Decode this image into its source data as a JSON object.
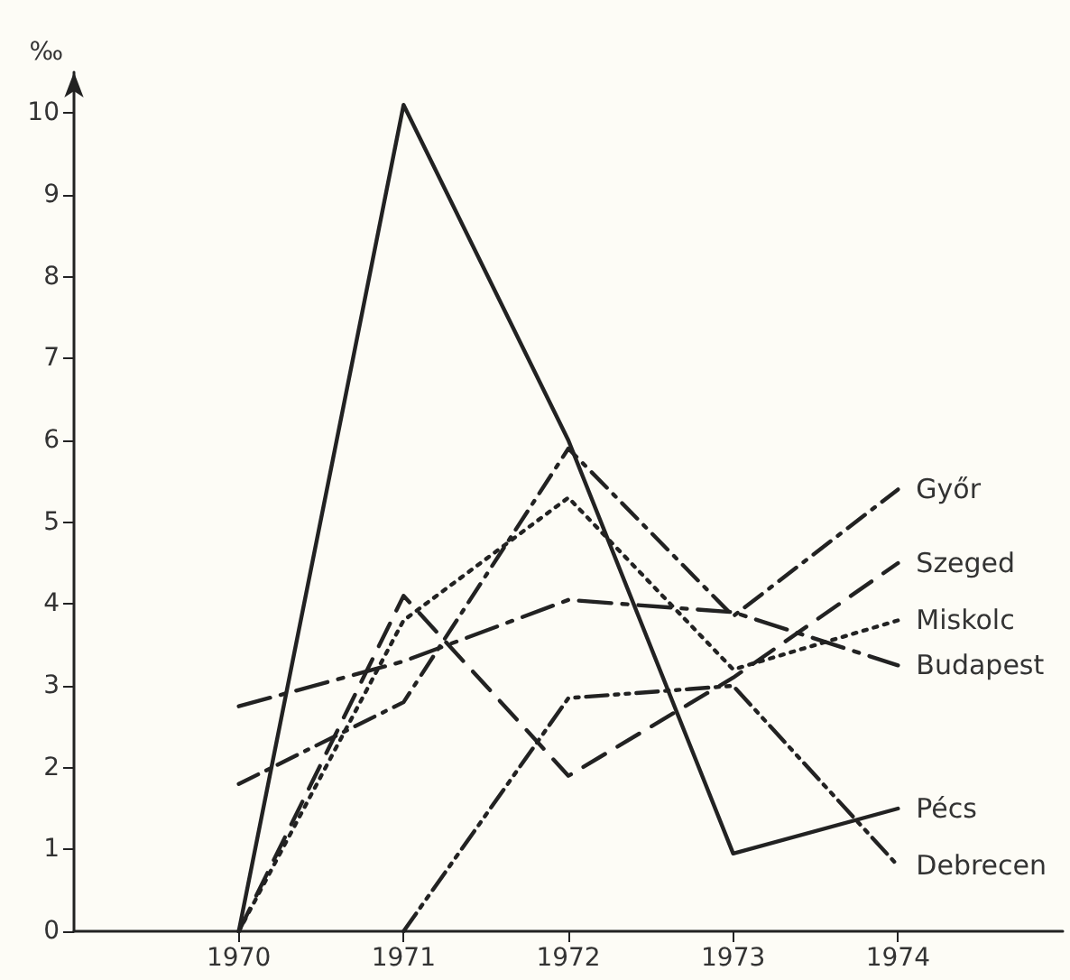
{
  "chart_data": {
    "type": "line",
    "ylabel": "‰",
    "x": [
      1970,
      1971,
      1972,
      1973,
      1974
    ],
    "xlim": [
      1969,
      1975
    ],
    "xticks": [
      1970,
      1971,
      1972,
      1973,
      1974
    ],
    "ylim": [
      0,
      10.5
    ],
    "yticks": [
      0,
      1,
      2,
      3,
      4,
      5,
      6,
      7,
      8,
      9,
      10
    ],
    "grid": false,
    "legend": false,
    "marker": "none",
    "series": [
      {
        "name": "Győr",
        "color": "#222222",
        "line_style": "dashdot",
        "values": [
          1.8,
          2.8,
          5.9,
          3.85,
          5.4
        ]
      },
      {
        "name": "Szeged",
        "color": "#222222",
        "line_style": "dashed",
        "values": [
          0,
          4.1,
          1.9,
          3.1,
          4.5
        ]
      },
      {
        "name": "Miskolc",
        "color": "#222222",
        "line_style": "dotted",
        "values": [
          0,
          3.8,
          5.3,
          3.2,
          3.8
        ]
      },
      {
        "name": "Budapest",
        "color": "#222222",
        "line_style": "longdashdot",
        "values": [
          2.75,
          3.3,
          4.05,
          3.9,
          3.25
        ]
      },
      {
        "name": "Pécs",
        "color": "#222222",
        "line_style": "solid",
        "values": [
          0,
          10.1,
          6.0,
          0.95,
          1.5
        ]
      },
      {
        "name": "Debrecen",
        "color": "#222222",
        "line_style": "dashdotdot",
        "values": [
          null,
          0,
          2.85,
          3.0,
          0.8
        ]
      }
    ]
  }
}
